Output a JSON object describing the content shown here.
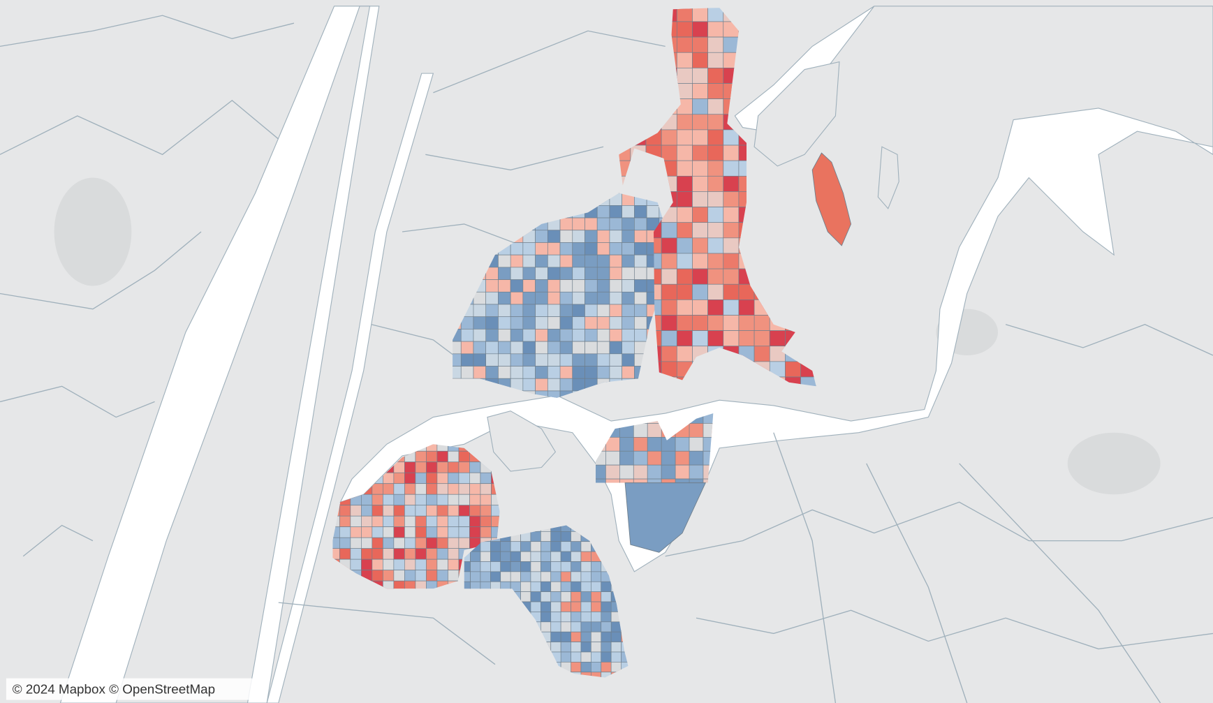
{
  "attribution": "© 2024 Mapbox © OpenStreetMap"
}
